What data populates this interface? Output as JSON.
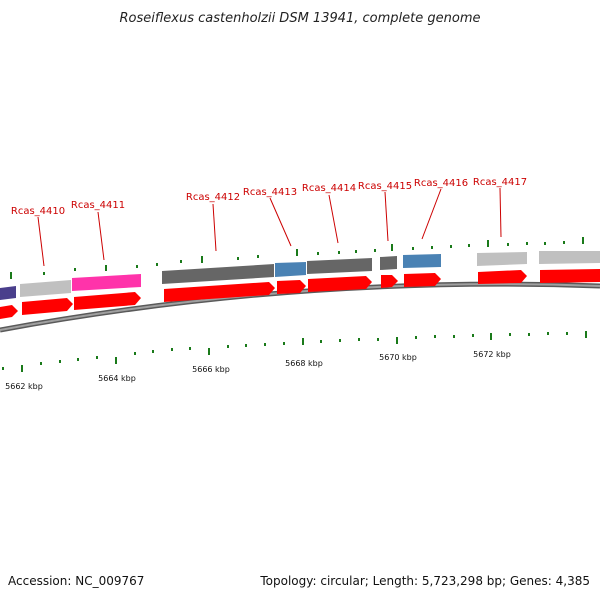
{
  "title": "Roseiflexus castenholzii DSM 13941, complete genome",
  "colors": {
    "backbone": "#888888",
    "cds": "#ff0000",
    "grey_gene": "#c0c0c0",
    "dark_gene": "#666666",
    "magenta_gene": "#ff33aa",
    "blue_gene": "#4a82b4",
    "purple_gene": "#4a3f8c",
    "tick": "#1a7a1a",
    "label": "#cc0000"
  },
  "gene_labels": [
    "Rcas_4410",
    "Rcas_4411",
    "Rcas_4412",
    "Rcas_4413",
    "Rcas_4414",
    "Rcas_4415",
    "Rcas_4416",
    "Rcas_4417"
  ],
  "scale_labels": [
    "5662 kbp",
    "5664 kbp",
    "5666 kbp",
    "5668 kbp",
    "5670 kbp",
    "5672 kbp"
  ],
  "footer": {
    "accession": "Accession: NC_009767",
    "summary": "Topology: circular; Length: 5,723,298 bp; Genes: 4,385"
  }
}
